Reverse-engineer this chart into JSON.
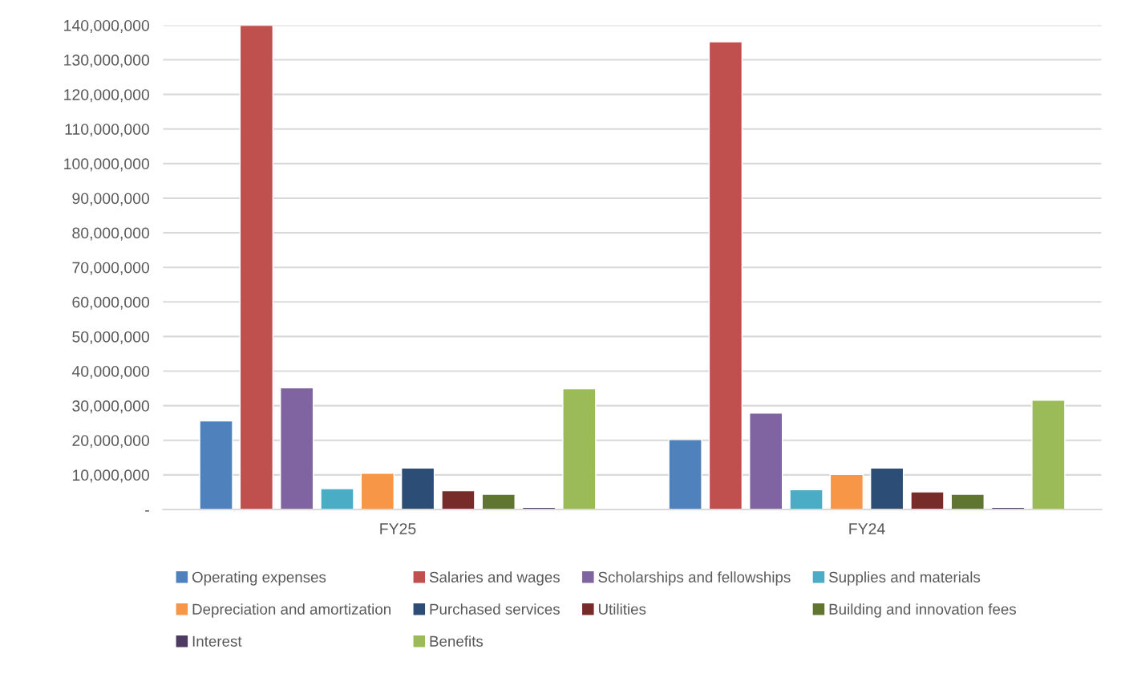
{
  "chart_data": {
    "type": "bar",
    "categories": [
      "FY25",
      "FY24"
    ],
    "series": [
      {
        "name": "Operating expenses",
        "color": "#4f81bd",
        "values": [
          25600000,
          20200000
        ]
      },
      {
        "name": "Salaries and wages",
        "color": "#c0504d",
        "values": [
          140000000,
          135200000
        ]
      },
      {
        "name": "Scholarships and fellowships",
        "color": "#8064a2",
        "values": [
          35200000,
          27900000
        ]
      },
      {
        "name": "Supplies and materials",
        "color": "#4bacc6",
        "values": [
          6000000,
          5700000
        ]
      },
      {
        "name": "Depreciation and amortization",
        "color": "#f79646",
        "values": [
          10500000,
          10100000
        ]
      },
      {
        "name": "Purchased services",
        "color": "#2c4d75",
        "values": [
          12000000,
          12000000
        ]
      },
      {
        "name": "Utilities",
        "color": "#772c2a",
        "values": [
          5400000,
          5100000
        ]
      },
      {
        "name": "Building and innovation fees",
        "color": "#5f7530",
        "values": [
          4400000,
          4400000
        ]
      },
      {
        "name": "Interest",
        "color": "#4d3b62",
        "values": [
          600000,
          600000
        ]
      },
      {
        "name": "Benefits",
        "color": "#9bbb59",
        "values": [
          34900000,
          31600000
        ]
      }
    ],
    "ylim": [
      0,
      140000000
    ],
    "yticks": [
      {
        "value": 0,
        "label": "-"
      },
      {
        "value": 10000000,
        "label": "10,000,000"
      },
      {
        "value": 20000000,
        "label": "20,000,000"
      },
      {
        "value": 30000000,
        "label": "30,000,000"
      },
      {
        "value": 40000000,
        "label": "40,000,000"
      },
      {
        "value": 50000000,
        "label": "50,000,000"
      },
      {
        "value": 60000000,
        "label": "60,000,000"
      },
      {
        "value": 70000000,
        "label": "70,000,000"
      },
      {
        "value": 80000000,
        "label": "80,000,000"
      },
      {
        "value": 90000000,
        "label": "90,000,000"
      },
      {
        "value": 100000000,
        "label": "100,000,000"
      },
      {
        "value": 110000000,
        "label": "110,000,000"
      },
      {
        "value": 120000000,
        "label": "120,000,000"
      },
      {
        "value": 130000000,
        "label": "130,000,000"
      },
      {
        "value": 140000000,
        "label": "140,000,000"
      }
    ],
    "grid": "y",
    "legend": "bottom"
  }
}
